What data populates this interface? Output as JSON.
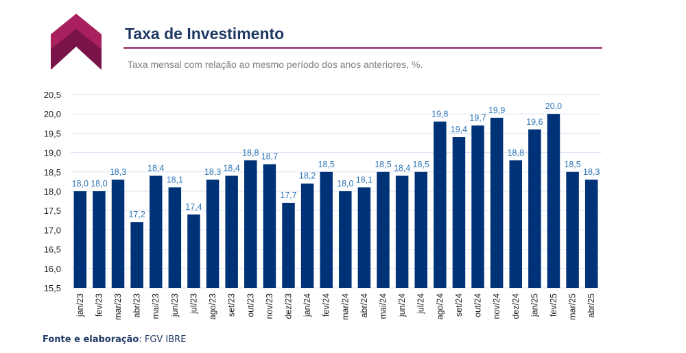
{
  "header": {
    "title": "Taxa de Investimento",
    "subtitle": "Taxa mensal com relação ao mesmo período dos anos anteriores, %."
  },
  "footer": {
    "source_label": "Fonte e elaboração",
    "source_value": ": FGV IBRE"
  },
  "colors": {
    "bar": "#003278",
    "data_label": "#2e75b6",
    "title": "#1f3864",
    "rule": "#8b1a5a",
    "gridline": "#d9e2f3",
    "logo_dark": "#7a1448",
    "logo_light": "#a8205e"
  },
  "chart_data": {
    "type": "bar",
    "categories": [
      "jan/23",
      "fev/23",
      "mar/23",
      "abr/23",
      "mai/23",
      "jun/23",
      "jul/23",
      "ago/23",
      "set/23",
      "out/23",
      "nov/23",
      "dez/23",
      "jan/24",
      "fev/24",
      "mar/24",
      "abr/24",
      "mai/24",
      "jun/24",
      "jul/24",
      "ago/24",
      "set/24",
      "out/24",
      "nov/24",
      "dez/24",
      "jan/25",
      "fev/25",
      "mar/25",
      "abr/25"
    ],
    "values": [
      18.0,
      18.0,
      18.3,
      17.2,
      18.4,
      18.1,
      17.4,
      18.3,
      18.4,
      18.8,
      18.7,
      17.7,
      18.2,
      18.5,
      18.0,
      18.1,
      18.5,
      18.4,
      18.5,
      19.8,
      19.4,
      19.7,
      19.9,
      18.8,
      19.6,
      20.0,
      18.5,
      18.3
    ],
    "value_labels": [
      "18,0",
      "18,0",
      "18,3",
      "17,2",
      "18,4",
      "18,1",
      "17,4",
      "18,3",
      "18,4",
      "18,8",
      "18,7",
      "17,7",
      "18,2",
      "18,5",
      "18,0",
      "18,1",
      "18,5",
      "18,4",
      "18,5",
      "19,8",
      "19,4",
      "19,7",
      "19,9",
      "18,8",
      "19,6",
      "20,0",
      "18,5",
      "18,3"
    ],
    "y_ticks": [
      "15,5",
      "16,0",
      "16,5",
      "17,0",
      "17,5",
      "18,0",
      "18,5",
      "19,0",
      "19,5",
      "20,0",
      "20,5"
    ],
    "ylim": [
      15.5,
      20.5
    ],
    "grid": true
  }
}
